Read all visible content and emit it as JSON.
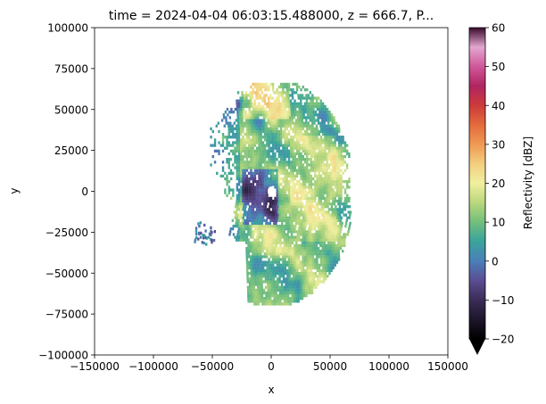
{
  "chart_data": {
    "type": "heatmap",
    "title": "time = 2024-04-04 06:03:15.488000, z = 666.7, P...",
    "xlabel": "x",
    "ylabel": "y",
    "xlim": [
      -150000,
      150000
    ],
    "ylim": [
      -100000,
      100000
    ],
    "xticks": [
      -150000,
      -100000,
      -50000,
      0,
      50000,
      100000,
      150000
    ],
    "xtick_labels": [
      "−150000",
      "−100000",
      "−50000",
      "0",
      "50000",
      "100000",
      "150000"
    ],
    "yticks": [
      100000,
      75000,
      50000,
      25000,
      0,
      -25000,
      -50000,
      -75000,
      -100000
    ],
    "ytick_labels": [
      "100000",
      "75000",
      "50000",
      "25000",
      "0",
      "−25000",
      "−50000",
      "−75000",
      "−100000"
    ],
    "grid": false,
    "colorbar": {
      "label": "Reflectivity [dBZ]",
      "range": [
        -20,
        60
      ],
      "extend": "min",
      "ticks": [
        -20,
        -10,
        0,
        10,
        20,
        30,
        40,
        50,
        60
      ],
      "tick_labels": [
        "−20",
        "−10",
        "0",
        "10",
        "20",
        "30",
        "40",
        "50",
        "60"
      ],
      "colormap_stops": [
        {
          "value": -20,
          "color": "#000000"
        },
        {
          "value": -10,
          "color": "#3b2c57"
        },
        {
          "value": -5,
          "color": "#5b4d92"
        },
        {
          "value": 0,
          "color": "#4a7fb8"
        },
        {
          "value": 5,
          "color": "#3aa39c"
        },
        {
          "value": 10,
          "color": "#72be7c"
        },
        {
          "value": 15,
          "color": "#b9d77c"
        },
        {
          "value": 20,
          "color": "#f1ef9f"
        },
        {
          "value": 25,
          "color": "#f3cf7f"
        },
        {
          "value": 30,
          "color": "#ef9a53"
        },
        {
          "value": 35,
          "color": "#e46b3d"
        },
        {
          "value": 40,
          "color": "#cc3a3a"
        },
        {
          "value": 45,
          "color": "#b02561"
        },
        {
          "value": 50,
          "color": "#d0579a"
        },
        {
          "value": 55,
          "color": "#e3a7d0"
        },
        {
          "value": 60,
          "color": "#3a0a2c"
        }
      ]
    },
    "echo_region": {
      "radar_location": [
        0,
        0
      ],
      "approx_extent_x": [
        -65000,
        68000
      ],
      "approx_extent_y": [
        -68000,
        68000
      ],
      "typical_reflectivity_range": [
        -15,
        30
      ]
    }
  }
}
